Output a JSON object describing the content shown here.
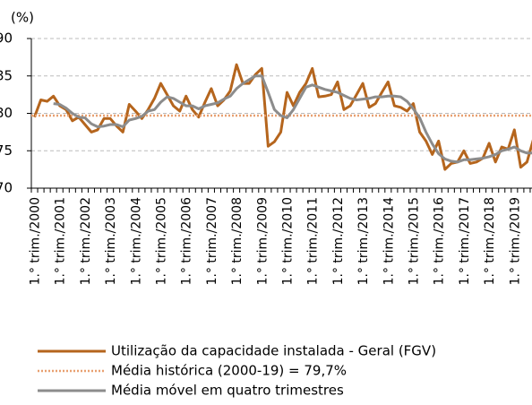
{
  "chart_data": {
    "type": "line",
    "y_unit_label": "(%)",
    "categories": [
      "1.° trim./2000",
      null,
      null,
      null,
      "1.° trim./2001",
      null,
      null,
      null,
      "1.° trim./2002",
      null,
      null,
      null,
      "1.° trim./2003",
      null,
      null,
      null,
      "1.° trim./2004",
      null,
      null,
      null,
      "1.° trim./2005",
      null,
      null,
      null,
      "1.° trim./2006",
      null,
      null,
      null,
      "1.° trim./2007",
      null,
      null,
      null,
      "1.° trim./2008",
      null,
      null,
      null,
      "1.° trim./2009",
      null,
      null,
      null,
      "1.° trim./2010",
      null,
      null,
      null,
      "1.° trim./2011",
      null,
      null,
      null,
      "1.° trim./2012",
      null,
      null,
      null,
      "1.° trim./2013",
      null,
      null,
      null,
      "1.° trim./2014",
      null,
      null,
      null,
      "1.° trim./2015",
      null,
      null,
      null,
      "1.° trim./2016",
      null,
      null,
      null,
      "1.° trim./2017",
      null,
      null,
      null,
      "1.° trim./2018",
      null,
      null,
      null,
      "1.° trim./2019",
      null,
      null,
      null
    ],
    "series": [
      {
        "name": "Utilização da capacidade instalada - Geral (FGV)",
        "color": "#b5651d",
        "style": "solid",
        "values": [
          79.5,
          81.8,
          81.6,
          82.3,
          81.0,
          80.5,
          79.0,
          79.5,
          78.5,
          77.5,
          77.8,
          79.3,
          79.3,
          78.3,
          77.5,
          81.2,
          80.3,
          79.3,
          80.5,
          82.0,
          84.0,
          82.5,
          81.0,
          80.3,
          82.3,
          80.5,
          79.5,
          81.5,
          83.3,
          81.0,
          81.8,
          83.0,
          86.5,
          84.0,
          84.0,
          85.2,
          86.0,
          75.6,
          76.2,
          77.5,
          82.8,
          81.0,
          82.8,
          84.0,
          86.0,
          82.2,
          82.3,
          82.5,
          84.2,
          80.5,
          81.0,
          82.5,
          84.0,
          80.8,
          81.3,
          82.8,
          84.2,
          81.0,
          80.8,
          80.3,
          81.3,
          77.5,
          76.3,
          74.5,
          76.3,
          72.5,
          73.3,
          73.5,
          75.0,
          73.3,
          73.5,
          74.0,
          76.0,
          73.5,
          75.5,
          75.2,
          77.8,
          72.8,
          73.5,
          76.5
        ]
      },
      {
        "name": "Média histórica (2000-19) = 79,7%",
        "color": "#e8a070",
        "style": "dotted",
        "level": 79.7
      },
      {
        "name": "Média móvel em quatro trimestres",
        "color": "#8c8c8c",
        "style": "solid",
        "values": [
          null,
          null,
          null,
          81.3,
          81.2,
          80.7,
          80.0,
          79.5,
          79.4,
          78.6,
          78.2,
          78.3,
          78.5,
          78.5,
          78.2,
          79.1,
          79.3,
          79.6,
          80.3,
          80.5,
          81.5,
          82.2,
          82.0,
          81.5,
          81.0,
          81.0,
          80.6,
          81.0,
          81.2,
          81.4,
          81.9,
          82.3,
          83.3,
          84.0,
          84.5,
          85.0,
          85.0,
          82.8,
          80.5,
          79.7,
          79.4,
          80.5,
          82.0,
          83.5,
          83.8,
          83.5,
          83.2,
          83.0,
          82.8,
          82.4,
          82.0,
          81.8,
          81.9,
          82.0,
          82.2,
          82.2,
          82.3,
          82.3,
          82.2,
          81.6,
          80.6,
          79.4,
          77.5,
          75.9,
          74.6,
          73.9,
          73.6,
          73.5,
          73.8,
          73.8,
          73.9,
          74.0,
          74.2,
          74.5,
          75.0,
          75.2,
          75.5,
          75.0,
          74.7,
          74.7
        ]
      }
    ],
    "ylim": [
      70,
      90
    ],
    "yticks": [
      70,
      75,
      80,
      85,
      90
    ],
    "grid": true
  }
}
